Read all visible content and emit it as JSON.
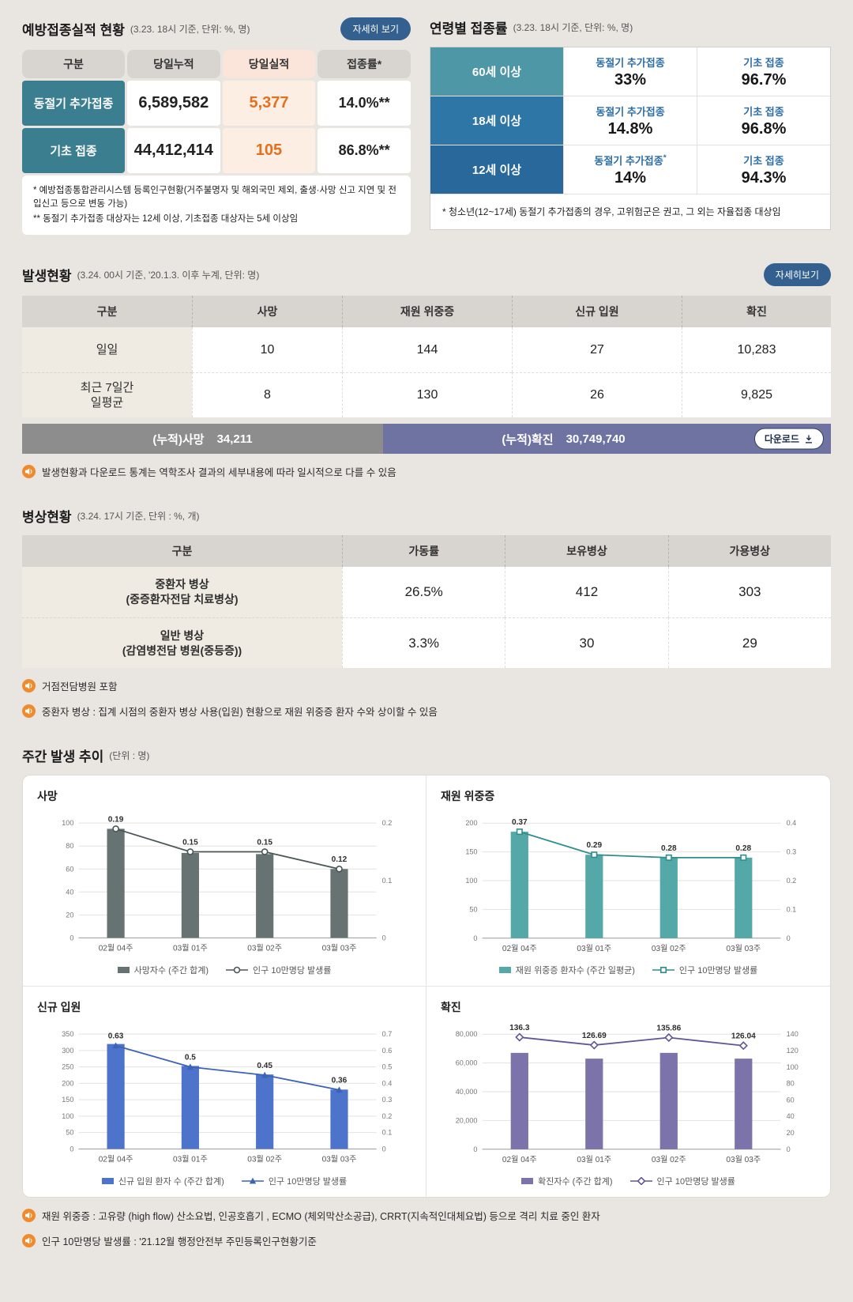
{
  "colors": {
    "page-bg": "#e9e6e1",
    "accent-navy": "#33608f",
    "teal-header": "#3a7e90",
    "age-60": "#4d97a6",
    "age-18": "#2e76a6",
    "age-12": "#28689b",
    "orange": "#e2701f",
    "orange-bg": "#fdeee4",
    "orange-header-bg": "#fbe5da",
    "gray-header": "#d8d5d0",
    "beige-cell": "#efebe2",
    "cumulative-gray": "#8d8d8d",
    "cumulative-purple": "#6e73a2",
    "note-icon-orange": "#ef8a2e"
  },
  "vaccination": {
    "title": "예방접종실적 현황",
    "subtitle": "(3.23. 18시 기준, 단위: %, 명)",
    "detail_button": "자세히 보기",
    "headers": [
      "구분",
      "당일누적",
      "당일실적",
      "접종률*"
    ],
    "rows": [
      {
        "label": "동절기 추가접종",
        "cumulative": "6,589,582",
        "daily": "5,377",
        "rate": "14.0%**"
      },
      {
        "label": "기초 접종",
        "cumulative": "44,412,414",
        "daily": "105",
        "rate": "86.8%**"
      }
    ],
    "footnote1": "* 예방접종통합관리시스템 등록인구현황(거주불명자 및 해외국민 제외, 출생·사망 신고 지연 및 전입신고 등으로 변동 가능)",
    "footnote2": "** 동절기 추가접종 대상자는 12세 이상, 기초접종 대상자는 5세 이상임"
  },
  "age_rates": {
    "title": "연령별 접종률",
    "subtitle": "(3.23. 18시 기준, 단위: %, 명)",
    "rows": [
      {
        "label": "60세 이상",
        "winter_label": "동절기 추가접종",
        "winter_sup": "",
        "winter_value": "33%",
        "basic_label": "기초 접종",
        "basic_value": "96.7%"
      },
      {
        "label": "18세 이상",
        "winter_label": "동절기 추가접종",
        "winter_sup": "",
        "winter_value": "14.8%",
        "basic_label": "기초 접종",
        "basic_value": "96.8%"
      },
      {
        "label": "12세 이상",
        "winter_label": "동절기 추가접종",
        "winter_sup": "*",
        "winter_value": "14%",
        "basic_label": "기초 접종",
        "basic_value": "94.3%"
      }
    ],
    "footnote": "* 청소년(12~17세) 동절기 추가접종의 경우, 고위험군은 권고, 그 외는 자율접종 대상임"
  },
  "outbreak": {
    "title": "발생현황",
    "subtitle": "(3.24. 00시 기준, '20.1.3. 이후 누계, 단위: 명)",
    "detail_button": "자세히보기",
    "headers": [
      "구분",
      "사망",
      "재원 위중증",
      "신규 입원",
      "확진"
    ],
    "rows": [
      {
        "label1": "일일",
        "label2": "",
        "death": "10",
        "severe": "144",
        "admission": "27",
        "confirmed": "10,283"
      },
      {
        "label1": "최근 7일간",
        "label2": "일평균",
        "death": "8",
        "severe": "130",
        "admission": "26",
        "confirmed": "9,825"
      }
    ],
    "cum_death_label": "(누적)사망",
    "cum_death_value": "34,211",
    "cum_conf_label": "(누적)확진",
    "cum_conf_value": "30,749,740",
    "download_button": "다운로드",
    "note": "발생현황과 다운로드 통계는 역학조사 결과의 세부내용에 따라 일시적으로 다를 수 있음"
  },
  "beds": {
    "title": "병상현황",
    "subtitle": "(3.24. 17시 기준, 단위 : %, 개)",
    "headers": [
      "구분",
      "가동률",
      "보유병상",
      "가용병상"
    ],
    "rows": [
      {
        "label1": "중환자 병상",
        "label2": "(중증환자전담 치료병상)",
        "rate": "26.5%",
        "owned": "412",
        "available": "303"
      },
      {
        "label1": "일반 병상",
        "label2": "(감염병전담 병원(중등증))",
        "rate": "3.3%",
        "owned": "30",
        "available": "29"
      }
    ],
    "note1": "거점전담병원 포함",
    "note2": "중환자 병상 : 집계 시점의 중환자 병상 사용(입원) 현황으로 재원 위중증 환자 수와 상이할 수 있음"
  },
  "weekly": {
    "title": "주간 발생 추이",
    "subtitle": "(단위 : 명)",
    "note1": "재원 위중증 : 고유량 (high flow) 산소요법, 인공호흡기 , ECMO (체외막산소공급), CRRT(지속적인대체요법) 등으로 격리 치료 중인 환자",
    "note2": "인구 10만명당 발생률 : '21.12월 행정안전부 주민등록인구현황기준"
  },
  "chart_data": [
    {
      "type": "bar+line",
      "title": "사망",
      "categories": [
        "02월 04주",
        "03월 01주",
        "03월 02주",
        "03월 03주"
      ],
      "bar": {
        "name": "사망자수 (주간 합계)",
        "values": [
          95,
          74,
          73,
          60
        ],
        "color": "#677272"
      },
      "line": {
        "name": "인구 10만명당 발생률",
        "values": [
          0.19,
          0.15,
          0.15,
          0.12
        ],
        "labels": [
          "0.19",
          "0.15",
          "0.15",
          "0.12"
        ],
        "color": "#4b5656",
        "marker": "circle"
      },
      "left_axis": {
        "min": 0,
        "max": 100,
        "ticks": [
          "0",
          "20",
          "40",
          "60",
          "80",
          "100"
        ]
      },
      "right_axis": {
        "min": 0,
        "max": 0.2,
        "ticks": [
          "0",
          "0.1",
          "0.2"
        ]
      },
      "grid": true,
      "legend_position": "bottom"
    },
    {
      "type": "bar+line",
      "title": "재원 위중증",
      "categories": [
        "02월 04주",
        "03월 01주",
        "03월 02주",
        "03월 03주"
      ],
      "bar": {
        "name": "재원 위중증 환자수 (주간 일평균)",
        "values": [
          185,
          145,
          140,
          140
        ],
        "color": "#55a8a8"
      },
      "line": {
        "name": "인구 10만명당 발생률",
        "values": [
          0.37,
          0.29,
          0.28,
          0.28
        ],
        "labels": [
          "0.37",
          "0.29",
          "0.28",
          "0.28"
        ],
        "color": "#2f8e8e",
        "marker": "square"
      },
      "left_axis": {
        "min": 0,
        "max": 200,
        "ticks": [
          "0",
          "50",
          "100",
          "150",
          "200"
        ]
      },
      "right_axis": {
        "min": 0,
        "max": 0.4,
        "ticks": [
          "0",
          "0.1",
          "0.2",
          "0.3",
          "0.4"
        ]
      },
      "grid": true,
      "legend_position": "bottom"
    },
    {
      "type": "bar+line",
      "title": "신규 입원",
      "categories": [
        "02월 04주",
        "03월 01주",
        "03월 02주",
        "03월 03주"
      ],
      "bar": {
        "name": "신규 입원 환자 수 (주간 합계)",
        "values": [
          320,
          253,
          227,
          181
        ],
        "color": "#4d73ca"
      },
      "line": {
        "name": "인구 10만명당 발생률",
        "values": [
          0.63,
          0.5,
          0.45,
          0.36
        ],
        "labels": [
          "0.63",
          "0.5",
          "0.45",
          "0.36"
        ],
        "color": "#3c63b8",
        "marker": "triangle"
      },
      "left_axis": {
        "min": 0,
        "max": 350,
        "ticks": [
          "0",
          "50",
          "100",
          "150",
          "200",
          "250",
          "300",
          "350"
        ]
      },
      "right_axis": {
        "min": 0,
        "max": 0.7,
        "ticks": [
          "0",
          "0.1",
          "0.2",
          "0.3",
          "0.4",
          "0.5",
          "0.6",
          "0.7"
        ]
      },
      "grid": true,
      "legend_position": "bottom"
    },
    {
      "type": "bar+line",
      "title": "확진",
      "categories": [
        "02월 04주",
        "03월 01주",
        "03월 02주",
        "03월 03주"
      ],
      "bar": {
        "name": "확진자수 (주간 합계)",
        "values": [
          67000,
          63000,
          67000,
          63000
        ],
        "color": "#7c73aa"
      },
      "line": {
        "name": "인구 10만명당 발생률",
        "values": [
          136.3,
          126.69,
          135.86,
          126.04
        ],
        "labels": [
          "136.3",
          "126.69",
          "135.86",
          "126.04"
        ],
        "color": "#615797",
        "marker": "diamond"
      },
      "left_axis": {
        "min": 0,
        "max": 80000,
        "ticks": [
          "0",
          "20,000",
          "40,000",
          "60,000",
          "80,000"
        ]
      },
      "right_axis": {
        "min": 0,
        "max": 140,
        "ticks": [
          "0",
          "20",
          "40",
          "60",
          "80",
          "100",
          "120",
          "140"
        ]
      },
      "grid": true,
      "legend_position": "bottom"
    }
  ]
}
